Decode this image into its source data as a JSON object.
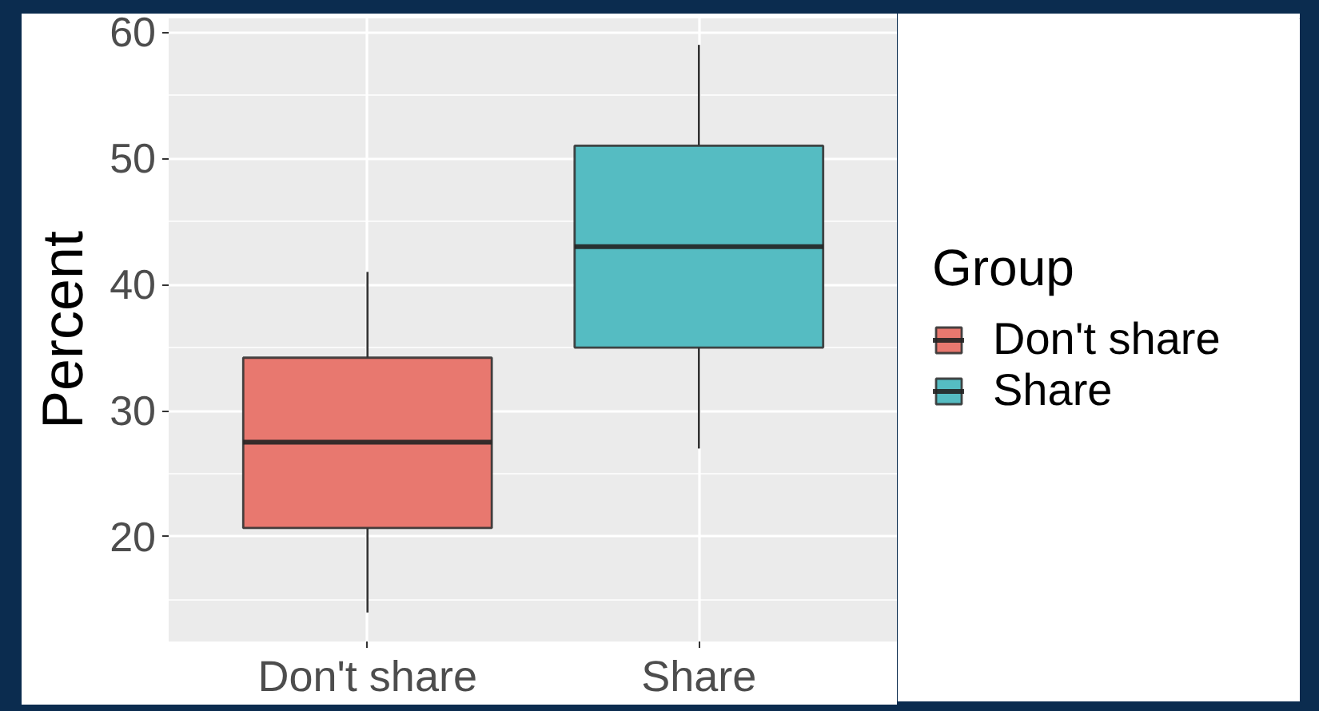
{
  "chart_data": {
    "type": "box",
    "categories": [
      "Don't share",
      "Share"
    ],
    "series": [
      {
        "name": "Don't share",
        "color": "#e8786f",
        "boxes": [
          {
            "low": 14,
            "q1": 20.7,
            "median": 27.5,
            "q3": 34.2,
            "high": 41
          },
          null
        ]
      },
      {
        "name": "Share",
        "color": "#55bcc2",
        "boxes": [
          null,
          {
            "low": 27,
            "q1": 35,
            "median": 43,
            "q3": 51,
            "high": 59
          }
        ]
      }
    ],
    "ylabel": "Percent",
    "legend_title": "Group",
    "ylim": [
      11.7,
      61.1
    ],
    "yticks": [
      20,
      30,
      40,
      50,
      60
    ],
    "grid": true,
    "legend": "right"
  }
}
